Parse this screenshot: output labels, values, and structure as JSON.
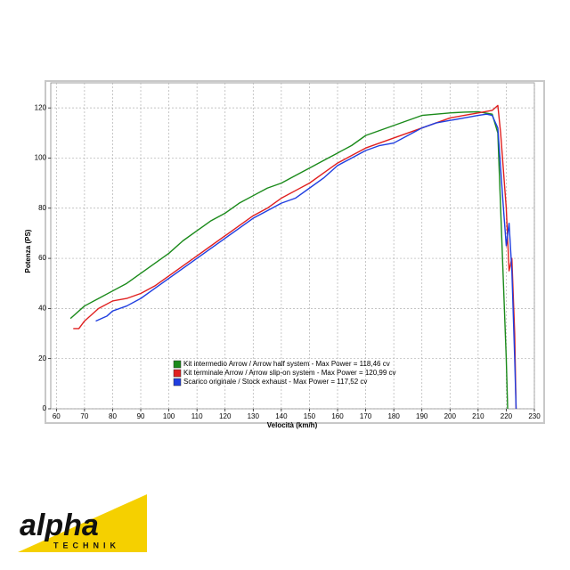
{
  "chart_data": {
    "type": "line",
    "x_label": "Velocità (km/h)",
    "y_label": "Potenza (PS)",
    "xlim": [
      58,
      230
    ],
    "ylim": [
      0,
      130
    ],
    "xticks": [
      60,
      70,
      80,
      90,
      100,
      110,
      120,
      130,
      140,
      150,
      160,
      170,
      180,
      190,
      200,
      210,
      220,
      230
    ],
    "yticks": [
      0,
      20,
      40,
      60,
      80,
      100,
      120
    ],
    "grid": true,
    "legend": "lower-center",
    "series": [
      {
        "name": "Kit intermedio Arrow / Arrow half system - Max Power = 118,46 cv",
        "color": "#1a8a1a",
        "x": [
          65,
          70,
          75,
          80,
          85,
          90,
          95,
          100,
          105,
          110,
          115,
          120,
          125,
          130,
          135,
          140,
          145,
          150,
          155,
          160,
          165,
          170,
          175,
          180,
          185,
          190,
          195,
          200,
          205,
          210,
          215,
          217,
          218,
          219,
          220,
          220.5
        ],
        "values": [
          36,
          41,
          44,
          47,
          50,
          54,
          58,
          62,
          67,
          71,
          75,
          78,
          82,
          85,
          88,
          90,
          93,
          96,
          99,
          102,
          105,
          109,
          111,
          113,
          115,
          117,
          117.5,
          118,
          118.3,
          118.46,
          117.5,
          110,
          80,
          50,
          20,
          0
        ]
      },
      {
        "name": "Kit terminale Arrow / Arrow slip-on system - Max Power = 120,99 cv",
        "color": "#e02020",
        "x": [
          66,
          68,
          70,
          75,
          80,
          85,
          90,
          95,
          100,
          105,
          110,
          115,
          120,
          125,
          130,
          135,
          140,
          145,
          150,
          155,
          160,
          165,
          170,
          175,
          180,
          185,
          190,
          195,
          200,
          205,
          210,
          215,
          217,
          218,
          220,
          221,
          222,
          223,
          223.5
        ],
        "values": [
          32,
          32,
          35,
          40,
          43,
          44,
          46,
          49,
          53,
          57,
          61,
          65,
          69,
          73,
          77,
          80,
          84,
          87,
          90,
          94,
          98,
          101,
          104,
          106,
          108,
          110,
          112,
          114,
          116,
          117,
          118,
          119,
          120.99,
          110,
          80,
          55,
          60,
          30,
          0
        ]
      },
      {
        "name": "Scarico originale / Stock exhaust - Max Power = 117,52 cv",
        "color": "#1f3ee0",
        "x": [
          74,
          78,
          80,
          85,
          90,
          95,
          100,
          105,
          110,
          115,
          120,
          125,
          130,
          135,
          140,
          145,
          150,
          155,
          160,
          165,
          170,
          175,
          180,
          185,
          190,
          195,
          200,
          205,
          210,
          213,
          215,
          217,
          219,
          220,
          221,
          222,
          223,
          223.5
        ],
        "values": [
          35,
          37,
          39,
          41,
          44,
          48,
          52,
          56,
          60,
          64,
          68,
          72,
          76,
          79,
          82,
          84,
          88,
          92,
          97,
          100,
          103,
          105,
          106,
          109,
          112,
          114,
          115,
          116,
          117,
          117.52,
          117,
          112,
          80,
          65,
          74,
          55,
          20,
          0
        ]
      }
    ]
  },
  "logo": {
    "text": "alpha",
    "subtext": "TECHNIK"
  }
}
